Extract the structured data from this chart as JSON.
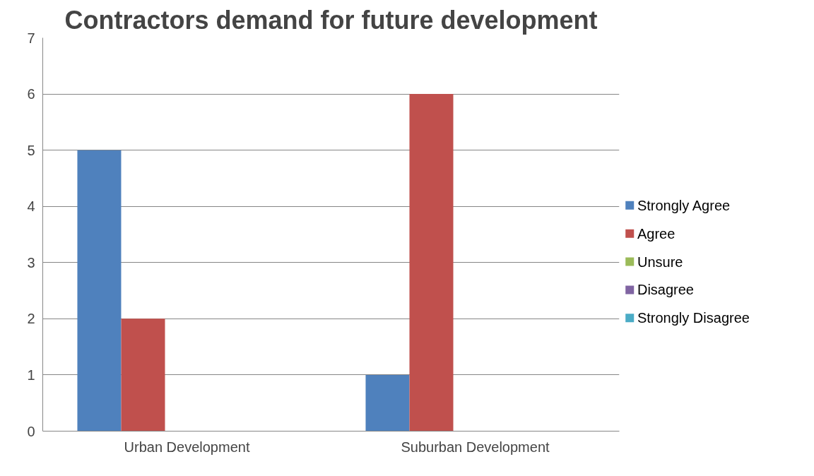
{
  "chart_data": {
    "type": "bar",
    "title": "Contractors demand for future development",
    "categories": [
      "Urban Development",
      "Suburban Development"
    ],
    "series": [
      {
        "name": "Strongly Agree",
        "color": "#4f81bd",
        "values": [
          5,
          1
        ]
      },
      {
        "name": "Agree",
        "color": "#c0504d",
        "values": [
          2,
          6
        ]
      },
      {
        "name": "Unsure",
        "color": "#9bbb59",
        "values": [
          0,
          0
        ]
      },
      {
        "name": "Disagree",
        "color": "#8064a2",
        "values": [
          0,
          0
        ]
      },
      {
        "name": "Strongly Disagree",
        "color": "#4bacc6",
        "values": [
          0,
          0
        ]
      }
    ],
    "ylim": [
      0,
      7
    ],
    "yticks": [
      0,
      1,
      2,
      3,
      4,
      5,
      6,
      7
    ],
    "grid": "y",
    "legend": "right"
  }
}
